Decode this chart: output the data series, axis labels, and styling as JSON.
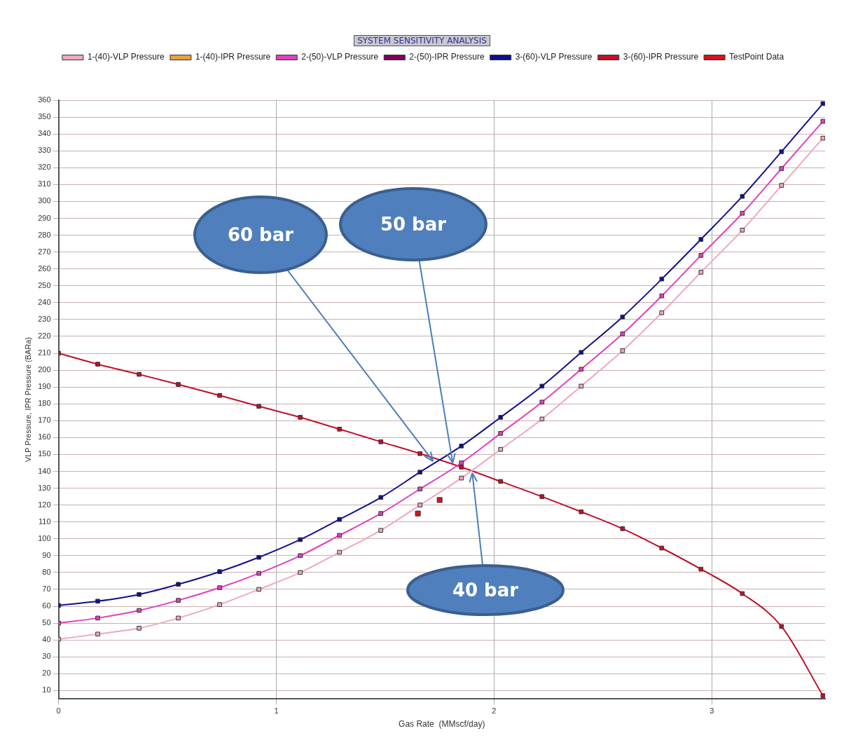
{
  "chart_data": {
    "type": "line",
    "title": "SYSTEM SENSITIVITY ANALYSIS",
    "xlabel": "Gas Rate  (MMscf/day)",
    "ylabel": "VLP Pressure, IPR Pressure (BARa)",
    "x": [
      0,
      0.18,
      0.37,
      0.55,
      0.74,
      0.92,
      1.11,
      1.29,
      1.48,
      1.66,
      1.85,
      2.03,
      2.22,
      2.4,
      2.59,
      2.77,
      2.95,
      3.14,
      3.32,
      3.51
    ],
    "series": [
      {
        "name": "1-(40)-VLP Pressure",
        "color": "#f0a8bc",
        "values": [
          40.5,
          43.5,
          47,
          53,
          61,
          70,
          80,
          92,
          105,
          120,
          136,
          153,
          171,
          190.5,
          211.5,
          234,
          258,
          283,
          309.5,
          337.5
        ]
      },
      {
        "name": "1-(40)-IPR Pressure",
        "color": "#e8a040",
        "values": [
          null,
          null,
          null,
          null,
          null,
          null,
          null,
          null,
          null,
          null,
          null,
          null,
          null,
          null,
          null,
          null,
          null,
          null,
          null,
          null
        ]
      },
      {
        "name": "2-(50)-VLP Pressure",
        "color": "#e040c0",
        "values": [
          50,
          53,
          57.5,
          63.5,
          71,
          79.5,
          90,
          102,
          115,
          129.5,
          145,
          162.5,
          181,
          200.5,
          221.5,
          244,
          268,
          293,
          319.5,
          347.5
        ]
      },
      {
        "name": "2-(50)-IPR Pressure",
        "color": "#800060",
        "values": [
          null,
          null,
          null,
          null,
          null,
          null,
          null,
          null,
          null,
          null,
          null,
          null,
          null,
          null,
          null,
          null,
          null,
          null,
          null,
          null
        ]
      },
      {
        "name": "3-(60)-VLP Pressure",
        "color": "#10108c",
        "values": [
          60.5,
          63,
          67,
          73,
          80.5,
          89,
          99.5,
          111.5,
          124.5,
          139.5,
          155,
          172,
          190.5,
          210.5,
          231.5,
          254,
          277.5,
          303,
          329.5,
          358
        ]
      },
      {
        "name": "3-(60)-IPR Pressure",
        "color": "#c01028",
        "values": [
          210,
          203.5,
          197.5,
          191.5,
          185,
          178.5,
          172,
          165,
          157.5,
          150.5,
          142.5,
          134,
          125,
          116,
          106,
          94.5,
          82,
          67.5,
          48,
          7
        ]
      },
      {
        "name": "TestPoint Data",
        "type": "scatter",
        "color": "#dd1020",
        "x": [
          1.65,
          1.75
        ],
        "values": [
          115,
          123
        ]
      }
    ],
    "xlim": [
      0,
      3.52
    ],
    "xticks": [
      0,
      1,
      2,
      3
    ],
    "ylim": [
      5,
      360
    ],
    "yticks": [
      10,
      20,
      30,
      40,
      50,
      60,
      70,
      80,
      90,
      100,
      110,
      120,
      130,
      140,
      150,
      160,
      170,
      180,
      190,
      200,
      210,
      220,
      230,
      240,
      250,
      260,
      270,
      280,
      290,
      300,
      310,
      320,
      330,
      340,
      350,
      360
    ],
    "grid": true,
    "legend": "top",
    "marker": "square",
    "line_style": "solid",
    "annotations": [
      {
        "text": "60 bar",
        "x": 1.72,
        "y": 146
      },
      {
        "text": "50 bar",
        "x": 1.81,
        "y": 145
      },
      {
        "text": "40 bar",
        "x": 1.9,
        "y": 139
      }
    ]
  }
}
